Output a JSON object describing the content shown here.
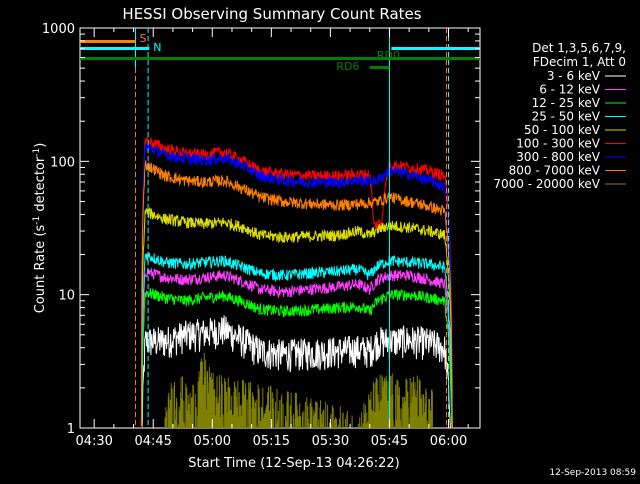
{
  "chart_data": {
    "type": "line",
    "title": "HESSI Observing Summary Count Rates",
    "xlabel": "Start Time (12-Sep-13 04:26:22)",
    "ylabel_main": "Count Rate (s",
    "ylabel_sup1": "-1",
    "ylabel_mid": " detector",
    "ylabel_sup2": "-1",
    "ylabel_end": ")",
    "ylim": [
      1,
      1000
    ],
    "yscale": "log",
    "xlim_minutes": [
      266.4,
      368.0
    ],
    "x_ticks": [
      {
        "m": 270,
        "label": "04:30"
      },
      {
        "m": 285,
        "label": "04:45"
      },
      {
        "m": 300,
        "label": "05:00"
      },
      {
        "m": 315,
        "label": "05:15"
      },
      {
        "m": 330,
        "label": "05:30"
      },
      {
        "m": 345,
        "label": "05:45"
      },
      {
        "m": 360,
        "label": "06:00"
      }
    ],
    "y_ticks": [
      {
        "v": 1,
        "label": "1"
      },
      {
        "v": 10,
        "label": "10"
      },
      {
        "v": 100,
        "label": "100"
      },
      {
        "v": 1000,
        "label": "1000"
      }
    ],
    "legend_title_1": "Det 1,3,5,6,7,9,",
    "legend_title_2": "FDecim 1, Att 0",
    "series": [
      {
        "name": "3 - 6 keV",
        "color": "#ffffff",
        "x": [
          282,
          283,
          288,
          293,
          298,
          303,
          308,
          312,
          318,
          325,
          332,
          337,
          340,
          342,
          345,
          350,
          355,
          359,
          361
        ],
        "values": [
          0,
          4.5,
          4.5,
          5,
          5.2,
          5.5,
          4.5,
          3.8,
          3.6,
          3.7,
          3.8,
          3.9,
          3.8,
          4.5,
          4.5,
          4.6,
          4.4,
          4,
          0
        ]
      },
      {
        "name": "6 - 12 keV",
        "color": "#ff3fff",
        "x": [
          282,
          283,
          288,
          293,
          298,
          303,
          308,
          312,
          318,
          325,
          332,
          337,
          340,
          342,
          345,
          350,
          355,
          359,
          361
        ],
        "values": [
          0,
          15,
          13.5,
          13,
          13.5,
          14,
          12.5,
          11,
          10.5,
          11,
          11.5,
          12,
          11,
          13,
          14,
          14,
          13,
          12,
          0
        ]
      },
      {
        "name": "12 - 25 keV",
        "color": "#00ff00",
        "x": [
          282,
          283,
          288,
          293,
          298,
          303,
          308,
          312,
          318,
          325,
          332,
          337,
          340,
          342,
          345,
          350,
          355,
          359,
          361
        ],
        "values": [
          0,
          10.5,
          9.5,
          9,
          9.5,
          9.8,
          8.8,
          7.8,
          7.5,
          7.7,
          8,
          8.2,
          7.5,
          9,
          10,
          10,
          9.5,
          9,
          0
        ]
      },
      {
        "name": "25 - 50 keV",
        "color": "#00ffff",
        "x": [
          282,
          283,
          288,
          293,
          298,
          303,
          308,
          312,
          318,
          325,
          332,
          337,
          340,
          342,
          345,
          350,
          355,
          359,
          361
        ],
        "values": [
          0,
          20,
          17.5,
          17,
          17.5,
          18,
          16,
          14.5,
          14,
          14.5,
          15,
          15.5,
          14,
          16.5,
          18,
          17.5,
          17,
          16,
          0
        ]
      },
      {
        "name": "50 - 100 keV",
        "color": "#dddd00",
        "x": [
          282,
          283,
          288,
          293,
          298,
          303,
          308,
          312,
          318,
          325,
          332,
          337,
          340,
          342,
          345,
          350,
          355,
          359,
          361
        ],
        "values": [
          0,
          42,
          37,
          35,
          34,
          35,
          32,
          28,
          27,
          27.5,
          28,
          30,
          28,
          31,
          33,
          32,
          30,
          28,
          0
        ]
      },
      {
        "name": "100 - 300 keV",
        "color": "#ff0000",
        "x": [
          282,
          283,
          288,
          293,
          298,
          303,
          308,
          312,
          318,
          325,
          332,
          337,
          340,
          341,
          343,
          345,
          350,
          355,
          359,
          361
        ],
        "values": [
          0,
          145,
          125,
          115,
          112,
          118,
          100,
          85,
          80,
          78,
          78,
          80,
          80,
          33,
          35,
          95,
          90,
          85,
          78,
          0
        ]
      },
      {
        "name": "300 - 800 keV",
        "color": "#0000ff",
        "x": [
          282,
          283,
          288,
          293,
          298,
          303,
          308,
          312,
          318,
          325,
          332,
          337,
          340,
          342,
          345,
          350,
          355,
          359,
          361
        ],
        "values": [
          0,
          130,
          112,
          105,
          102,
          106,
          92,
          78,
          72,
          70,
          70,
          72,
          71,
          72,
          85,
          80,
          72,
          65,
          0
        ]
      },
      {
        "name": "800 - 7000 keV",
        "color": "#ff8000",
        "x": [
          282,
          283,
          288,
          293,
          298,
          303,
          308,
          312,
          318,
          325,
          332,
          337,
          340,
          342,
          345,
          350,
          355,
          359,
          361
        ],
        "values": [
          0,
          95,
          78,
          72,
          70,
          72,
          62,
          54,
          50,
          48,
          47,
          48,
          49,
          50,
          54,
          50,
          46,
          42,
          0
        ]
      },
      {
        "name": "7000 - 20000 keV",
        "color": "#808000",
        "x": [
          288,
          290,
          292,
          294,
          296,
          298,
          300,
          337,
          340,
          342,
          344,
          346,
          348,
          350,
          352,
          354,
          356
        ],
        "values": [
          1,
          2,
          2,
          1.5,
          2,
          2.9,
          2,
          1,
          1.5,
          2,
          2,
          2,
          1.6,
          2,
          2,
          1.6,
          1.5
        ]
      }
    ],
    "status_flags": [
      {
        "label": "S",
        "color": "#ff8000"
      },
      {
        "label": "N",
        "color": "#00ffff"
      },
      {
        "label": "RD0",
        "color": "#008000"
      },
      {
        "label": "RD6",
        "color": "#008000"
      }
    ],
    "footer_date": "12-Sep-2013 08:59"
  }
}
